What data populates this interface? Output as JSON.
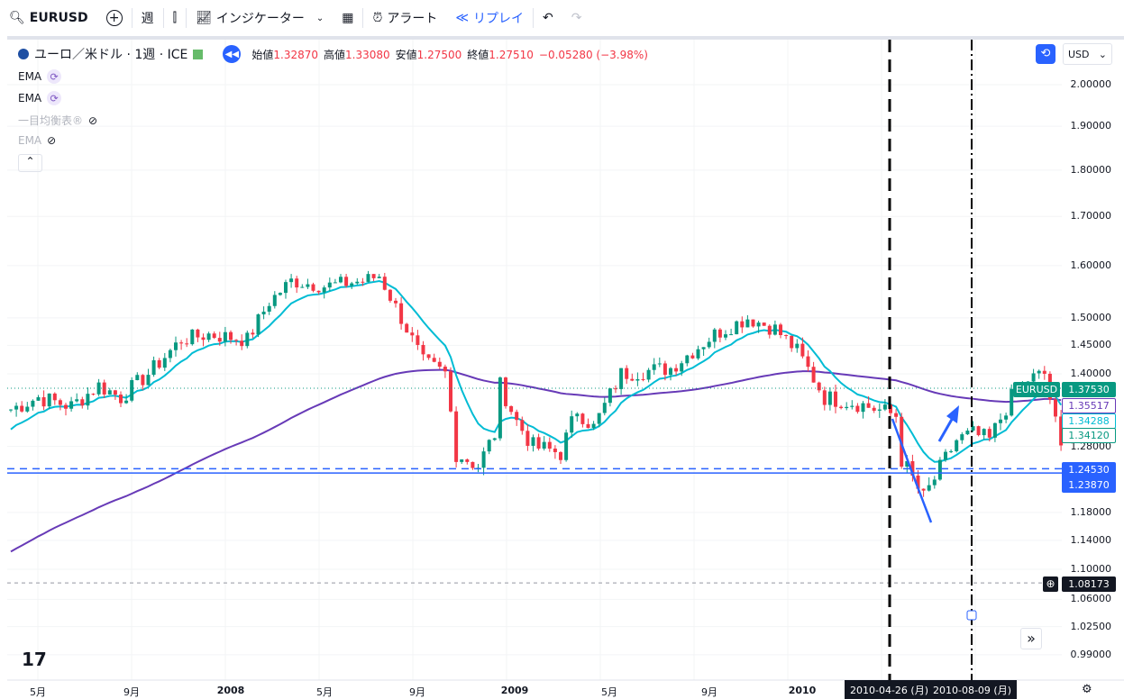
{
  "toolbar": {
    "symbol": "EURUSD",
    "interval": "週",
    "indicators": "インジケーター",
    "alert": "アラート",
    "replay": "リプレイ"
  },
  "legend": {
    "title": "ユーロ／米ドル · 1週 · ICE",
    "open_label": "始値",
    "open": "1.32870",
    "high_label": "高値",
    "high": "1.33080",
    "low_label": "安値",
    "low": "1.27500",
    "close_label": "終値",
    "close": "1.27510",
    "change": "−0.05280 (−3.98%)"
  },
  "indicators": [
    {
      "label": "EMA",
      "visible": true
    },
    {
      "label": "EMA",
      "visible": true
    },
    {
      "label": "一目均衡表®",
      "visible": false
    },
    {
      "label": "EMA",
      "visible": false
    }
  ],
  "currency": "USD",
  "price_axis": [
    "2.00000",
    "1.90000",
    "1.80000",
    "1.70000",
    "1.60000",
    "1.50000",
    "1.45000",
    "1.40000",
    "1.28000",
    "1.18000",
    "1.14000",
    "1.10000",
    "1.06000",
    "1.02500",
    "0.99000"
  ],
  "price_tags": {
    "symbol": "EURUSD",
    "last": "1.37530",
    "ema_long": "1.35517",
    "ema_short": "1.34288",
    "other": "1.34120",
    "line1": "1.24530",
    "line2": "1.23870",
    "crosshair": "1.08173"
  },
  "time_axis": [
    "5月",
    "9月",
    "2008",
    "5月",
    "9月",
    "2009",
    "5月",
    "9月",
    "2010"
  ],
  "time_markers": [
    "2010-04-26 (月)",
    "2010-08-09 (月)"
  ],
  "colors": {
    "up": "#089981",
    "down": "#f23645",
    "ema_short": "#00bcd4",
    "ema_long": "#673ab7",
    "drawing": "#2962ff"
  },
  "price_anchors": [
    [
      0,
      1.34
    ],
    [
      5,
      1.36
    ],
    [
      11,
      1.345
    ],
    [
      16,
      1.38
    ],
    [
      20,
      1.36
    ],
    [
      25,
      1.4
    ],
    [
      31,
      1.46
    ],
    [
      36,
      1.47
    ],
    [
      43,
      1.46
    ],
    [
      47,
      1.53
    ],
    [
      51,
      1.57
    ],
    [
      57,
      1.56
    ],
    [
      64,
      1.57
    ],
    [
      67,
      1.58
    ],
    [
      70,
      1.52
    ],
    [
      75,
      1.42
    ],
    [
      79,
      1.4
    ],
    [
      81,
      1.27
    ],
    [
      85,
      1.25
    ],
    [
      88,
      1.3
    ],
    [
      89,
      1.38
    ],
    [
      92,
      1.32
    ],
    [
      95,
      1.28
    ],
    [
      100,
      1.27
    ],
    [
      103,
      1.34
    ],
    [
      106,
      1.31
    ],
    [
      111,
      1.4
    ],
    [
      120,
      1.41
    ],
    [
      128,
      1.47
    ],
    [
      134,
      1.5
    ],
    [
      139,
      1.48
    ],
    [
      143,
      1.44
    ],
    [
      148,
      1.36
    ],
    [
      154,
      1.35
    ],
    [
      161,
      1.33
    ],
    [
      162,
      1.26
    ],
    [
      166,
      1.2
    ],
    [
      168,
      1.23
    ],
    [
      172,
      1.29
    ],
    [
      175,
      1.3
    ],
    [
      178,
      1.29
    ],
    [
      182,
      1.36
    ],
    [
      185,
      1.39
    ],
    [
      188,
      1.4
    ],
    [
      191,
      1.275
    ]
  ]
}
